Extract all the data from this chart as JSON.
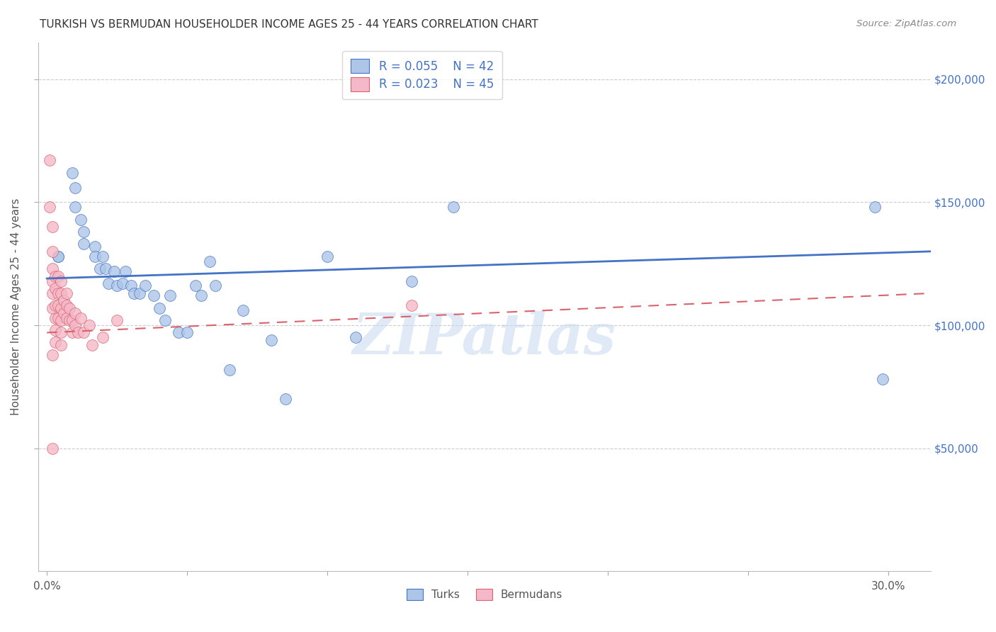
{
  "title": "TURKISH VS BERMUDAN HOUSEHOLDER INCOME AGES 25 - 44 YEARS CORRELATION CHART",
  "source": "Source: ZipAtlas.com",
  "ylabel": "Householder Income Ages 25 - 44 years",
  "ytick_labels": [
    "$50,000",
    "$100,000",
    "$150,000",
    "$200,000"
  ],
  "ytick_vals": [
    50000,
    100000,
    150000,
    200000
  ],
  "ylim": [
    0,
    215000
  ],
  "xlim": [
    -0.003,
    0.315
  ],
  "turks_color": "#adc6e8",
  "turks_line_color": "#4472c4",
  "bermudans_color": "#f4b8c8",
  "bermudans_line_color": "#d9626d",
  "watermark": "ZIPatlas",
  "watermark_color": "#c8d8f0",
  "turks_x": [
    0.004,
    0.004,
    0.009,
    0.01,
    0.01,
    0.012,
    0.013,
    0.013,
    0.017,
    0.017,
    0.019,
    0.02,
    0.021,
    0.022,
    0.024,
    0.025,
    0.027,
    0.028,
    0.03,
    0.031,
    0.033,
    0.035,
    0.038,
    0.04,
    0.042,
    0.044,
    0.047,
    0.05,
    0.053,
    0.055,
    0.058,
    0.06,
    0.065,
    0.07,
    0.08,
    0.085,
    0.1,
    0.11,
    0.13,
    0.145,
    0.295,
    0.298
  ],
  "turks_y": [
    128000,
    128000,
    162000,
    156000,
    148000,
    143000,
    138000,
    133000,
    132000,
    128000,
    123000,
    128000,
    123000,
    117000,
    122000,
    116000,
    117000,
    122000,
    116000,
    113000,
    113000,
    116000,
    112000,
    107000,
    102000,
    112000,
    97000,
    97000,
    116000,
    112000,
    126000,
    116000,
    82000,
    106000,
    94000,
    70000,
    128000,
    95000,
    118000,
    148000,
    148000,
    78000
  ],
  "bermudans_x": [
    0.001,
    0.001,
    0.002,
    0.002,
    0.002,
    0.002,
    0.002,
    0.002,
    0.003,
    0.003,
    0.003,
    0.003,
    0.003,
    0.003,
    0.004,
    0.004,
    0.004,
    0.004,
    0.005,
    0.005,
    0.005,
    0.005,
    0.005,
    0.005,
    0.006,
    0.006,
    0.007,
    0.007,
    0.007,
    0.008,
    0.008,
    0.009,
    0.009,
    0.01,
    0.01,
    0.011,
    0.012,
    0.013,
    0.015,
    0.016,
    0.02,
    0.025,
    0.13,
    0.002,
    0.002
  ],
  "bermudans_y": [
    167000,
    148000,
    140000,
    130000,
    123000,
    118000,
    113000,
    107000,
    120000,
    115000,
    108000,
    103000,
    98000,
    93000,
    120000,
    113000,
    108000,
    103000,
    118000,
    113000,
    107000,
    102000,
    97000,
    92000,
    110000,
    105000,
    113000,
    108000,
    103000,
    107000,
    102000,
    102000,
    97000,
    105000,
    100000,
    97000,
    103000,
    97000,
    100000,
    92000,
    95000,
    102000,
    108000,
    88000,
    50000
  ],
  "turks_trendline_x": [
    0.0,
    0.315
  ],
  "turks_trendline_y": [
    119000,
    130000
  ],
  "bermudans_trendline_x": [
    0.0,
    0.315
  ],
  "bermudans_trendline_y": [
    97000,
    113000
  ]
}
